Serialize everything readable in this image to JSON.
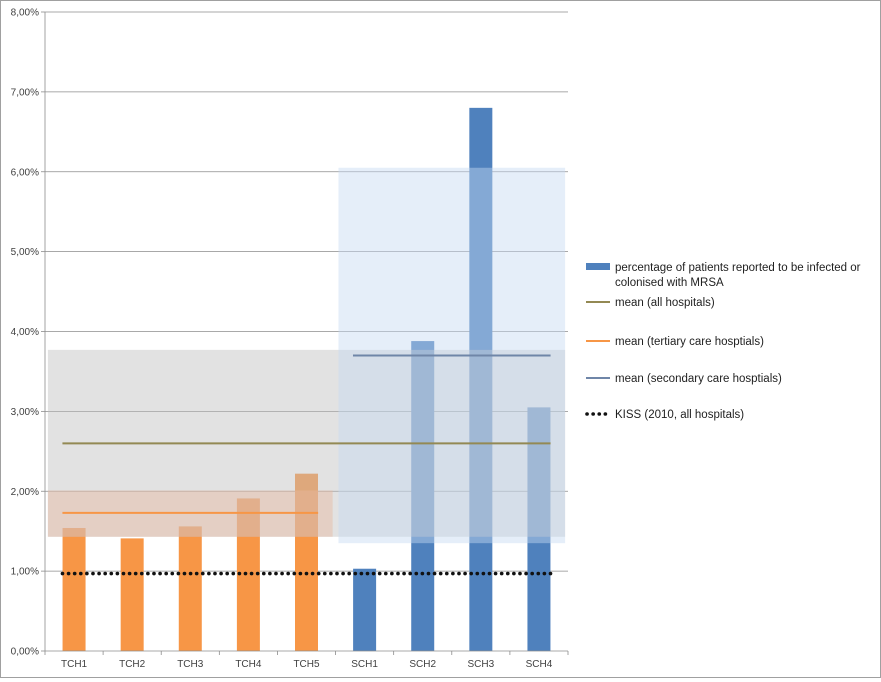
{
  "chart_data": {
    "type": "bar",
    "categories": [
      "TCH1",
      "TCH2",
      "TCH3",
      "TCH4",
      "TCH5",
      "SCH1",
      "SCH2",
      "SCH3",
      "SCH4"
    ],
    "series": [
      {
        "name": "percentage of patients reported to be infected or colonised with MRSA",
        "values": [
          1.54,
          1.41,
          1.56,
          1.91,
          2.22,
          1.03,
          3.88,
          6.8,
          3.05
        ],
        "colors": [
          "#f79646",
          "#f79646",
          "#f79646",
          "#f79646",
          "#f79646",
          "#4f81bd",
          "#4f81bd",
          "#4f81bd",
          "#4f81bd"
        ]
      }
    ],
    "reference_lines": [
      {
        "name": "mean (all hospitals)",
        "value": 2.6,
        "from": "TCH1",
        "to": "SCH4",
        "color": "#938953",
        "style": "solid"
      },
      {
        "name": "mean (tertiary care hosptials)",
        "value": 1.73,
        "from": "TCH1",
        "to": "TCH5",
        "color": "#f79646",
        "style": "solid"
      },
      {
        "name": "mean (secondary care hosptials)",
        "value": 3.7,
        "from": "SCH1",
        "to": "SCH4",
        "color": "#6f86a8",
        "style": "solid"
      },
      {
        "name": "KISS (2010, all hospitals)",
        "value": 0.97,
        "from": "TCH1",
        "to": "SCH4",
        "color": "#111111",
        "style": "dotted"
      }
    ],
    "shaded_ranges": [
      {
        "y_from": 1.43,
        "y_to": 3.77,
        "from": "TCH1",
        "to": "SCH4",
        "color": "#bfbfbf",
        "opacity": 0.45
      },
      {
        "y_from": 1.43,
        "y_to": 2.01,
        "from": "TCH1",
        "to": "TCH5",
        "color": "#e6b9a0",
        "opacity": 0.45
      },
      {
        "y_from": 1.35,
        "y_to": 6.05,
        "from": "SCH1",
        "to": "SCH4",
        "color": "#c6d9f1",
        "opacity": 0.45
      }
    ],
    "yticks": [
      "0,00%",
      "1,00%",
      "2,00%",
      "3,00%",
      "4,00%",
      "5,00%",
      "6,00%",
      "7,00%",
      "8,00%"
    ],
    "ylim": [
      0,
      8
    ],
    "ytick_step": 1,
    "grid": true,
    "legend_position": "right",
    "title": "",
    "xlabel": "",
    "ylabel": ""
  }
}
